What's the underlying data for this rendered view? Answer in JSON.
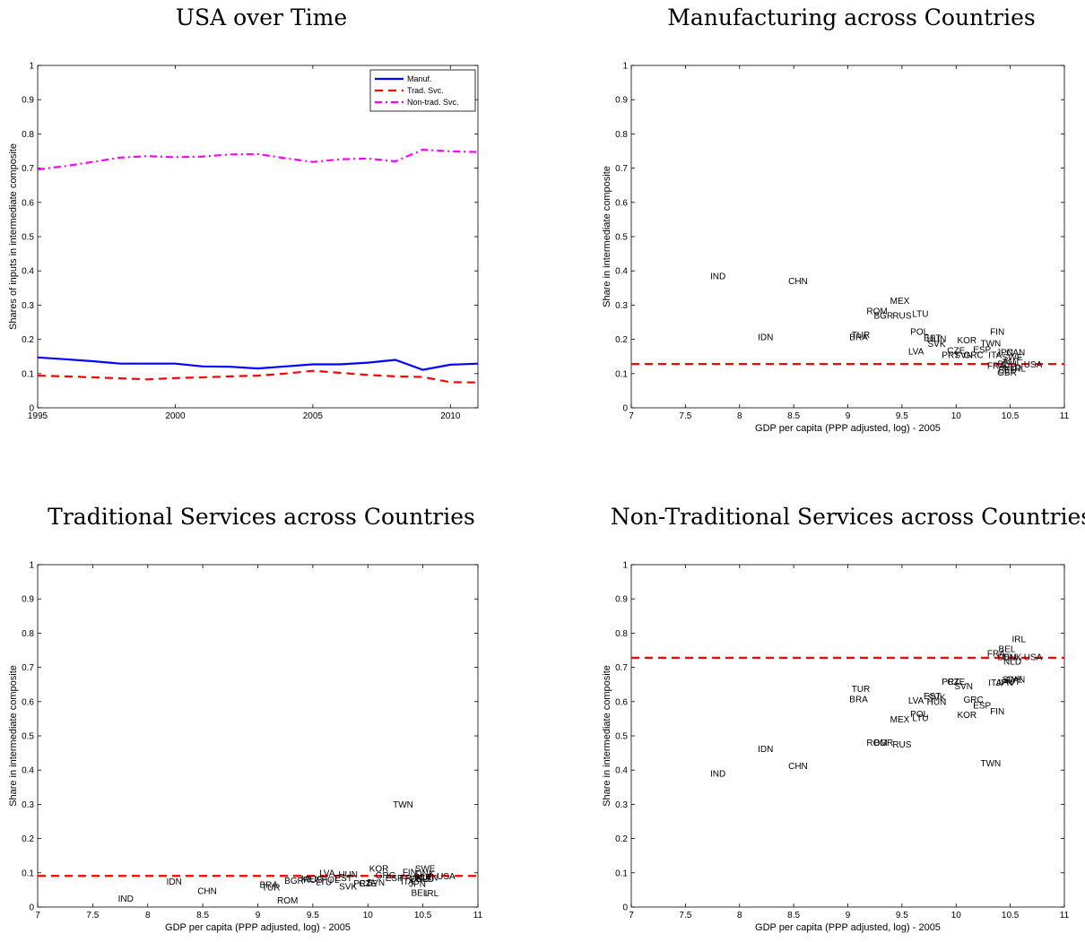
{
  "chart_data": [
    {
      "type": "line",
      "title": "USA over Time",
      "xlabel": "",
      "ylabel": "Shares of inputs in intermediate composite",
      "xlim": [
        1995,
        2011
      ],
      "ylim": [
        0,
        1
      ],
      "xticks": [
        1995,
        2000,
        2005,
        2010
      ],
      "yticks": [
        0,
        0.1,
        0.2,
        0.3,
        0.4,
        0.5,
        0.6,
        0.7,
        0.8,
        0.9,
        1
      ],
      "legend_position": "top-right",
      "x": [
        1995,
        1996,
        1997,
        1998,
        1999,
        2000,
        2001,
        2002,
        2003,
        2004,
        2005,
        2006,
        2007,
        2008,
        2009,
        2010,
        2011
      ],
      "series": [
        {
          "name": "Manuf.",
          "color": "#0000ff",
          "dash": "solid",
          "values": [
            0.147,
            0.142,
            0.136,
            0.129,
            0.129,
            0.129,
            0.121,
            0.12,
            0.115,
            0.121,
            0.127,
            0.127,
            0.132,
            0.14,
            0.111,
            0.126,
            0.129
          ]
        },
        {
          "name": "Trad. Svc.",
          "color": "#ff0000",
          "dash": "dashed",
          "values": [
            0.094,
            0.092,
            0.089,
            0.086,
            0.083,
            0.087,
            0.089,
            0.092,
            0.094,
            0.1,
            0.108,
            0.102,
            0.096,
            0.092,
            0.09,
            0.075,
            0.074
          ]
        },
        {
          "name": "Non-trad. Svc.",
          "color": "#ff00ff",
          "dash": "dashdot",
          "values": [
            0.696,
            0.706,
            0.718,
            0.731,
            0.735,
            0.732,
            0.734,
            0.74,
            0.741,
            0.729,
            0.718,
            0.726,
            0.728,
            0.72,
            0.754,
            0.749,
            0.747
          ]
        }
      ]
    },
    {
      "type": "scatter",
      "title": "Manufacturing across Countries",
      "xlabel": "GDP per capita (PPP adjusted, log) - 2005",
      "ylabel": "Share in intermediate composite",
      "xlim": [
        7,
        11
      ],
      "ylim": [
        0,
        1
      ],
      "xticks": [
        7,
        7.5,
        8,
        8.5,
        9,
        9.5,
        10,
        10.5,
        11
      ],
      "yticks": [
        0,
        0.1,
        0.2,
        0.3,
        0.4,
        0.5,
        0.6,
        0.7,
        0.8,
        0.9,
        1
      ],
      "reference_line": {
        "y": 0.128,
        "color": "#ff0000",
        "dash": "dashed"
      },
      "points": [
        {
          "label": "IND",
          "x": 7.8,
          "y": 0.385
        },
        {
          "label": "CHN",
          "x": 8.54,
          "y": 0.371
        },
        {
          "label": "IDN",
          "x": 8.24,
          "y": 0.207
        },
        {
          "label": "MEX",
          "x": 9.48,
          "y": 0.313
        },
        {
          "label": "ROM",
          "x": 9.27,
          "y": 0.283
        },
        {
          "label": "BGR",
          "x": 9.33,
          "y": 0.27
        },
        {
          "label": "RUS",
          "x": 9.5,
          "y": 0.27
        },
        {
          "label": "LTU",
          "x": 9.67,
          "y": 0.275
        },
        {
          "label": "TUR",
          "x": 9.12,
          "y": 0.213
        },
        {
          "label": "BRA",
          "x": 9.1,
          "y": 0.207
        },
        {
          "label": "POL",
          "x": 9.66,
          "y": 0.223
        },
        {
          "label": "EST",
          "x": 9.78,
          "y": 0.204
        },
        {
          "label": "HUN",
          "x": 9.82,
          "y": 0.201
        },
        {
          "label": "SVK",
          "x": 9.82,
          "y": 0.187
        },
        {
          "label": "LVA",
          "x": 9.63,
          "y": 0.165
        },
        {
          "label": "KOR",
          "x": 10.1,
          "y": 0.198
        },
        {
          "label": "CZE",
          "x": 10.0,
          "y": 0.167
        },
        {
          "label": "PRT",
          "x": 9.95,
          "y": 0.155
        },
        {
          "label": "SVN",
          "x": 10.07,
          "y": 0.155
        },
        {
          "label": "GRC",
          "x": 10.16,
          "y": 0.155
        },
        {
          "label": "ESP",
          "x": 10.24,
          "y": 0.17
        },
        {
          "label": "TWN",
          "x": 10.32,
          "y": 0.189
        },
        {
          "label": "FIN",
          "x": 10.38,
          "y": 0.222
        },
        {
          "label": "ITA",
          "x": 10.36,
          "y": 0.155
        },
        {
          "label": "JPN",
          "x": 10.45,
          "y": 0.162
        },
        {
          "label": "CAN",
          "x": 10.55,
          "y": 0.162
        },
        {
          "label": "SWE",
          "x": 10.52,
          "y": 0.148
        },
        {
          "label": "AUT",
          "x": 10.51,
          "y": 0.136
        },
        {
          "label": "FRA",
          "x": 10.37,
          "y": 0.123
        },
        {
          "label": "DEU",
          "x": 10.47,
          "y": 0.128
        },
        {
          "label": "NLD",
          "x": 10.52,
          "y": 0.118
        },
        {
          "label": "BEL",
          "x": 10.47,
          "y": 0.11
        },
        {
          "label": "GBR",
          "x": 10.47,
          "y": 0.104
        },
        {
          "label": "IRL",
          "x": 10.58,
          "y": 0.115
        },
        {
          "label": "USA",
          "x": 10.71,
          "y": 0.127
        }
      ]
    },
    {
      "type": "scatter",
      "title": "Traditional Services across Countries",
      "xlabel": "GDP per capita (PPP adjusted, log) - 2005",
      "ylabel": "Share in intermediate composite",
      "xlim": [
        7,
        11
      ],
      "ylim": [
        0,
        1
      ],
      "xticks": [
        7,
        7.5,
        8,
        8.5,
        9,
        9.5,
        10,
        10.5,
        11
      ],
      "yticks": [
        0,
        0.1,
        0.2,
        0.3,
        0.4,
        0.5,
        0.6,
        0.7,
        0.8,
        0.9,
        1
      ],
      "reference_line": {
        "y": 0.091,
        "color": "#ff0000",
        "dash": "dashed"
      },
      "points": [
        {
          "label": "IND",
          "x": 7.8,
          "y": 0.025
        },
        {
          "label": "IDN",
          "x": 8.24,
          "y": 0.075
        },
        {
          "label": "CHN",
          "x": 8.54,
          "y": 0.047
        },
        {
          "label": "BRA",
          "x": 9.1,
          "y": 0.066
        },
        {
          "label": "TUR",
          "x": 9.12,
          "y": 0.057
        },
        {
          "label": "ROM",
          "x": 9.27,
          "y": 0.02
        },
        {
          "label": "BGR",
          "x": 9.33,
          "y": 0.077
        },
        {
          "label": "MEX",
          "x": 9.48,
          "y": 0.082
        },
        {
          "label": "RUS",
          "x": 9.5,
          "y": 0.08
        },
        {
          "label": "LTU",
          "x": 9.6,
          "y": 0.073
        },
        {
          "label": "POL",
          "x": 9.66,
          "y": 0.08
        },
        {
          "label": "LVA",
          "x": 9.63,
          "y": 0.1
        },
        {
          "label": "EST",
          "x": 9.78,
          "y": 0.085
        },
        {
          "label": "HUN",
          "x": 9.82,
          "y": 0.095
        },
        {
          "label": "SVK",
          "x": 9.82,
          "y": 0.06
        },
        {
          "label": "PRT",
          "x": 9.95,
          "y": 0.07
        },
        {
          "label": "CZE",
          "x": 10.0,
          "y": 0.07
        },
        {
          "label": "SVN",
          "x": 10.07,
          "y": 0.072
        },
        {
          "label": "KOR",
          "x": 10.1,
          "y": 0.113
        },
        {
          "label": "GRC",
          "x": 10.16,
          "y": 0.093
        },
        {
          "label": "ESP",
          "x": 10.24,
          "y": 0.085
        },
        {
          "label": "TWN",
          "x": 10.32,
          "y": 0.3
        },
        {
          "label": "FIN",
          "x": 10.38,
          "y": 0.102
        },
        {
          "label": "ITA",
          "x": 10.36,
          "y": 0.075
        },
        {
          "label": "FRA",
          "x": 10.37,
          "y": 0.085
        },
        {
          "label": "DEU",
          "x": 10.47,
          "y": 0.082
        },
        {
          "label": "JPN",
          "x": 10.45,
          "y": 0.068
        },
        {
          "label": "SWE",
          "x": 10.52,
          "y": 0.113
        },
        {
          "label": "DNK",
          "x": 10.52,
          "y": 0.098
        },
        {
          "label": "AUT",
          "x": 10.51,
          "y": 0.088
        },
        {
          "label": "CAN",
          "x": 10.55,
          "y": 0.086
        },
        {
          "label": "NLD",
          "x": 10.52,
          "y": 0.083
        },
        {
          "label": "BEL",
          "x": 10.47,
          "y": 0.042
        },
        {
          "label": "IRL",
          "x": 10.58,
          "y": 0.04
        },
        {
          "label": "USA",
          "x": 10.71,
          "y": 0.09
        }
      ]
    },
    {
      "type": "scatter",
      "title": "Non-Traditional Services across Countries",
      "xlabel": "GDP per capita (PPP adjusted, log) - 2005",
      "ylabel": "Share in intermediate composite",
      "xlim": [
        7,
        11
      ],
      "ylim": [
        0,
        1
      ],
      "xticks": [
        7,
        7.5,
        8,
        8.5,
        9,
        9.5,
        10,
        10.5,
        11
      ],
      "yticks": [
        0,
        0.1,
        0.2,
        0.3,
        0.4,
        0.5,
        0.6,
        0.7,
        0.8,
        0.9,
        1
      ],
      "reference_line": {
        "y": 0.728,
        "color": "#ff0000",
        "dash": "dashed"
      },
      "points": [
        {
          "label": "IND",
          "x": 7.8,
          "y": 0.39
        },
        {
          "label": "IDN",
          "x": 8.24,
          "y": 0.462
        },
        {
          "label": "CHN",
          "x": 8.54,
          "y": 0.412
        },
        {
          "label": "TUR",
          "x": 9.12,
          "y": 0.638
        },
        {
          "label": "BRA",
          "x": 9.1,
          "y": 0.607
        },
        {
          "label": "ROM",
          "x": 9.27,
          "y": 0.48
        },
        {
          "label": "BGR",
          "x": 9.33,
          "y": 0.48
        },
        {
          "label": "RUS",
          "x": 9.5,
          "y": 0.475
        },
        {
          "label": "MEX",
          "x": 9.48,
          "y": 0.548
        },
        {
          "label": "POL",
          "x": 9.66,
          "y": 0.564
        },
        {
          "label": "LTU",
          "x": 9.67,
          "y": 0.552
        },
        {
          "label": "LVA",
          "x": 9.63,
          "y": 0.604
        },
        {
          "label": "EST",
          "x": 9.78,
          "y": 0.617
        },
        {
          "label": "SVK",
          "x": 9.82,
          "y": 0.612
        },
        {
          "label": "HUN",
          "x": 9.82,
          "y": 0.599
        },
        {
          "label": "PRT",
          "x": 9.95,
          "y": 0.658
        },
        {
          "label": "CZE",
          "x": 10.0,
          "y": 0.658
        },
        {
          "label": "SVN",
          "x": 10.07,
          "y": 0.645
        },
        {
          "label": "GRC",
          "x": 10.16,
          "y": 0.606
        },
        {
          "label": "ESP",
          "x": 10.24,
          "y": 0.589
        },
        {
          "label": "KOR",
          "x": 10.1,
          "y": 0.562
        },
        {
          "label": "FIN",
          "x": 10.38,
          "y": 0.572
        },
        {
          "label": "TWN",
          "x": 10.32,
          "y": 0.42
        },
        {
          "label": "ITA",
          "x": 10.36,
          "y": 0.656
        },
        {
          "label": "JPN",
          "x": 10.45,
          "y": 0.656
        },
        {
          "label": "SWE",
          "x": 10.52,
          "y": 0.665
        },
        {
          "label": "AUT",
          "x": 10.51,
          "y": 0.658
        },
        {
          "label": "CAN",
          "x": 10.55,
          "y": 0.665
        },
        {
          "label": "FRA",
          "x": 10.37,
          "y": 0.741
        },
        {
          "label": "DEU",
          "x": 10.47,
          "y": 0.731
        },
        {
          "label": "DNK",
          "x": 10.52,
          "y": 0.731
        },
        {
          "label": "NLD",
          "x": 10.52,
          "y": 0.717
        },
        {
          "label": "BEL",
          "x": 10.47,
          "y": 0.754
        },
        {
          "label": "IRL",
          "x": 10.58,
          "y": 0.783
        },
        {
          "label": "USA",
          "x": 10.71,
          "y": 0.73
        }
      ]
    }
  ]
}
